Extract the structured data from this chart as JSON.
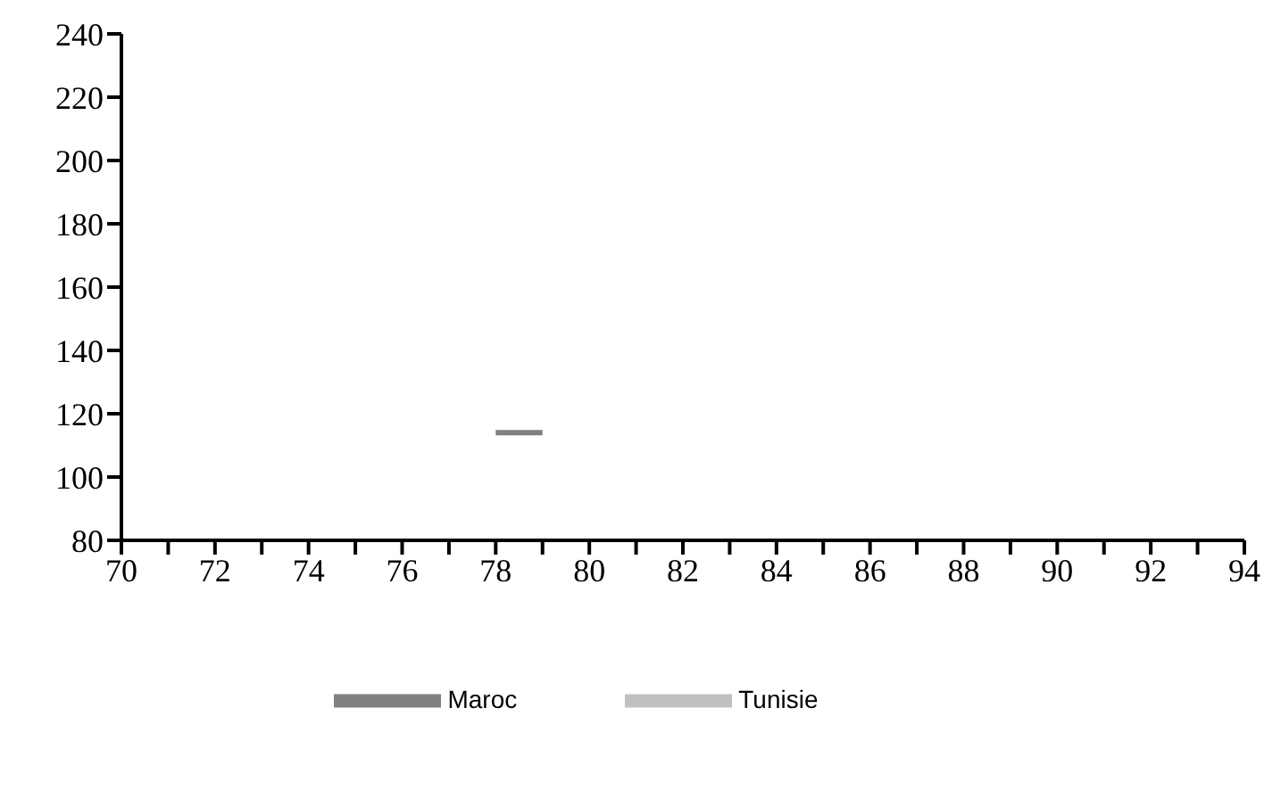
{
  "chart_data": {
    "type": "line",
    "x": [
      78,
      79
    ],
    "series": [
      {
        "name": "Maroc",
        "color": "#808080",
        "values": [
          114,
          114
        ]
      },
      {
        "name": "Tunisie",
        "color": "#c0c0c0",
        "values": [
          null,
          null
        ]
      }
    ],
    "xlim": [
      70,
      94
    ],
    "xticks": [
      70,
      {
        "value": 71,
        "label": null
      },
      72,
      {
        "value": 73,
        "label": null
      },
      74,
      {
        "value": 75,
        "label": null
      },
      76,
      {
        "value": 77,
        "label": null
      },
      78,
      {
        "value": 79,
        "label": null
      },
      80,
      {
        "value": 81,
        "label": null
      },
      82,
      {
        "value": 83,
        "label": null
      },
      84,
      {
        "value": 85,
        "label": null
      },
      86,
      {
        "value": 87,
        "label": null
      },
      88,
      {
        "value": 89,
        "label": null
      },
      90,
      {
        "value": 91,
        "label": null
      },
      92,
      {
        "value": 93,
        "label": null
      },
      94
    ],
    "ylim": [
      80,
      240
    ],
    "yticks": [
      80,
      100,
      120,
      140,
      160,
      180,
      200,
      220,
      240
    ],
    "grid": false,
    "legend": "bottom",
    "marker": "none",
    "line_style": "solid"
  }
}
